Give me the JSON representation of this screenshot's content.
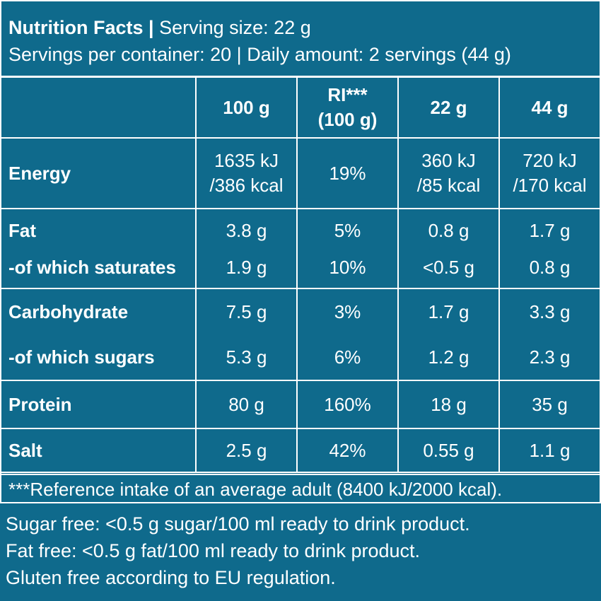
{
  "header": {
    "title": "Nutrition Facts",
    "separator": "|",
    "serving_size": "Serving size: 22 g",
    "line2": "Servings per container: 20 | Daily amount: 2 servings (44 g)"
  },
  "columns": {
    "c100g": "100 g",
    "ri_line1": "RI***",
    "ri_line2": "(100 g)",
    "c22g": "22 g",
    "c44g": "44 g"
  },
  "rows": {
    "energy": {
      "label": "Energy",
      "v100_l1": "1635 kJ",
      "v100_l2": "/386 kcal",
      "ri": "19%",
      "v22_l1": "360 kJ",
      "v22_l2": "/85 kcal",
      "v44_l1": "720 kJ",
      "v44_l2": "/170 kcal"
    },
    "fat": {
      "label": "Fat",
      "v100": "3.8 g",
      "ri": "5%",
      "v22": "0.8 g",
      "v44": "1.7 g"
    },
    "saturates": {
      "label": "-of which saturates",
      "v100": "1.9 g",
      "ri": "10%",
      "v22": "<0.5 g",
      "v44": "0.8 g"
    },
    "carbohydrate": {
      "label": "Carbohydrate",
      "v100": "7.5 g",
      "ri": "3%",
      "v22": "1.7 g",
      "v44": "3.3 g"
    },
    "sugars": {
      "label": "-of which sugars",
      "v100": "5.3 g",
      "ri": "6%",
      "v22": "1.2 g",
      "v44": "2.3 g"
    },
    "protein": {
      "label": "Protein",
      "v100": "80 g",
      "ri": "160%",
      "v22": "18 g",
      "v44": "35 g"
    },
    "salt": {
      "label": "Salt",
      "v100": "2.5 g",
      "ri": "42%",
      "v22": "0.55 g",
      "v44": "1.1 g"
    }
  },
  "footnote": "***Reference intake of an average adult (8400 kJ/2000 kcal).",
  "notes": [
    "Sugar free: <0.5 g sugar/100 ml ready to drink product.",
    "Fat free: <0.5 g fat/100 ml ready to drink product.",
    "Gluten free according to EU regulation."
  ],
  "colors": {
    "background": "#0f6a8c",
    "text": "#ffffff",
    "lines": "#ffffff"
  }
}
